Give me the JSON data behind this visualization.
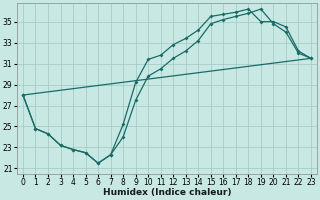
{
  "xlabel": "Humidex (Indice chaleur)",
  "bg_color": "#c8e8e4",
  "grid_color": "#a0c8c4",
  "line_color": "#1a6b65",
  "xlim": [
    -0.5,
    23.5
  ],
  "ylim": [
    20.5,
    36.8
  ],
  "xticks": [
    0,
    1,
    2,
    3,
    4,
    5,
    6,
    7,
    8,
    9,
    10,
    11,
    12,
    13,
    14,
    15,
    16,
    17,
    18,
    19,
    20,
    21,
    22,
    23
  ],
  "yticks": [
    21,
    23,
    25,
    27,
    29,
    31,
    33,
    35
  ],
  "curve1_x": [
    0,
    1,
    2,
    3,
    4,
    5,
    6,
    7,
    8,
    9,
    10,
    11,
    12,
    13,
    14,
    15,
    16,
    17,
    18,
    19,
    20,
    21,
    22,
    23
  ],
  "curve1_y": [
    28.0,
    24.8,
    24.3,
    23.2,
    22.8,
    22.5,
    21.5,
    22.3,
    25.2,
    29.2,
    31.4,
    31.8,
    32.8,
    33.4,
    34.2,
    35.5,
    35.7,
    35.9,
    36.2,
    35.0,
    35.0,
    34.5,
    32.2,
    31.5
  ],
  "curve2_x": [
    0,
    1,
    2,
    3,
    4,
    5,
    6,
    7,
    8,
    9,
    10,
    11,
    12,
    13,
    14,
    15,
    16,
    17,
    18,
    19,
    20,
    21,
    22,
    23
  ],
  "curve2_y": [
    28.0,
    24.8,
    24.3,
    23.2,
    22.8,
    22.5,
    21.5,
    22.3,
    24.0,
    27.5,
    29.8,
    30.5,
    31.5,
    32.2,
    33.2,
    34.8,
    35.2,
    35.5,
    35.8,
    36.2,
    34.8,
    34.0,
    32.0,
    31.5
  ],
  "line3_x": [
    0,
    23
  ],
  "line3_y": [
    28.0,
    31.5
  ],
  "tick_fontsize": 5.5,
  "xlabel_fontsize": 6.5
}
